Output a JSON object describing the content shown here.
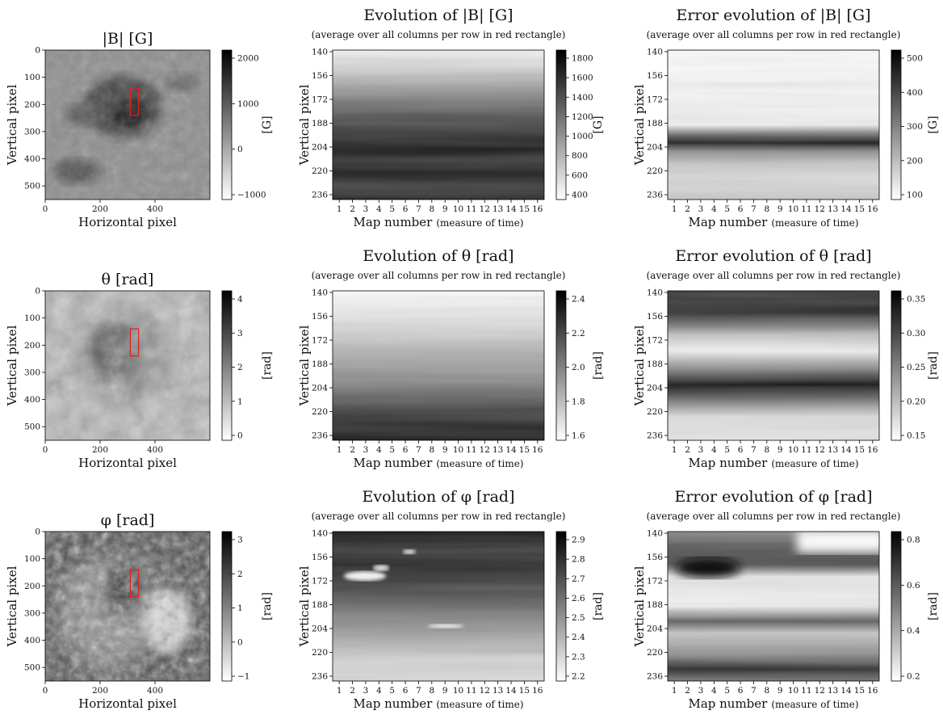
{
  "figure": {
    "rows": [
      {
        "map": {
          "title": "|B| [G]",
          "xlabel": "Horizontal pixel",
          "ylabel": "Vertical pixel",
          "xticks": [
            "0",
            "200",
            "400"
          ],
          "yticks": [
            "0",
            "100",
            "200",
            "300",
            "400",
            "500"
          ],
          "cbar_ticks": [
            "2000",
            "1000",
            "0",
            "−1000"
          ],
          "cbar_label": "[G]"
        },
        "evolution": {
          "title": "Evolution of |B| [G]",
          "subtitle": "(average over all columns per row in red rectangle)",
          "xlabel": "Map number",
          "xlabel_suffix": "(measure of time)",
          "yticks": [
            "140",
            "156",
            "172",
            "188",
            "204",
            "220",
            "236"
          ],
          "xticks": [
            "1",
            "2",
            "3",
            "4",
            "5",
            "6",
            "7",
            "8",
            "9",
            "10",
            "11",
            "12",
            "13",
            "14",
            "15",
            "16"
          ],
          "ylabel": "Vertical pixel",
          "cbar_ticks": [
            "1800",
            "1600",
            "1400",
            "1200",
            "1000",
            "800",
            "600",
            "400"
          ],
          "cbar_label": "[G]"
        },
        "error": {
          "title": "Error evolution of |B| [G]",
          "subtitle": "(average over all columns per row in red rectangle)",
          "xlabel": "Map number",
          "xlabel_suffix": "(measure of time)",
          "yticks": [
            "140",
            "156",
            "172",
            "188",
            "204",
            "220",
            "236"
          ],
          "xticks": [
            "1",
            "2",
            "3",
            "4",
            "5",
            "6",
            "7",
            "8",
            "9",
            "10",
            "11",
            "12",
            "13",
            "14",
            "15",
            "16"
          ],
          "ylabel": "Vertical pixel",
          "cbar_ticks": [
            "500",
            "400",
            "300",
            "200",
            "100"
          ],
          "cbar_label": "[G]"
        }
      },
      {
        "map": {
          "title": "θ [rad]",
          "xlabel": "Horizontal pixel",
          "ylabel": "Vertical pixel",
          "xticks": [
            "0",
            "200",
            "400"
          ],
          "yticks": [
            "0",
            "100",
            "200",
            "300",
            "400",
            "500"
          ],
          "cbar_ticks": [
            "4",
            "3",
            "2",
            "1",
            "0"
          ],
          "cbar_label": "[rad]"
        },
        "evolution": {
          "title": "Evolution of θ [rad]",
          "subtitle": "(average over all columns per row in red rectangle)",
          "xlabel": "Map number",
          "xlabel_suffix": "(measure of time)",
          "yticks": [
            "140",
            "156",
            "172",
            "188",
            "204",
            "220",
            "236"
          ],
          "xticks": [
            "1",
            "2",
            "3",
            "4",
            "5",
            "6",
            "7",
            "8",
            "9",
            "10",
            "11",
            "12",
            "13",
            "14",
            "15",
            "16"
          ],
          "ylabel": "Vertical pixel",
          "cbar_ticks": [
            "2.4",
            "2.2",
            "2.0",
            "1.8",
            "1.6"
          ],
          "cbar_label": "[rad]"
        },
        "error": {
          "title": "Error evolution of θ [rad]",
          "subtitle": "(average over all columns per row in red rectangle)",
          "xlabel": "Map number",
          "xlabel_suffix": "(measure of time)",
          "yticks": [
            "140",
            "156",
            "172",
            "188",
            "204",
            "220",
            "236"
          ],
          "xticks": [
            "1",
            "2",
            "3",
            "4",
            "5",
            "6",
            "7",
            "8",
            "9",
            "10",
            "11",
            "12",
            "13",
            "14",
            "15",
            "16"
          ],
          "ylabel": "Vertical pixel",
          "cbar_ticks": [
            "0.35",
            "0.30",
            "0.25",
            "0.20",
            "0.15"
          ],
          "cbar_label": "[rad]"
        }
      },
      {
        "map": {
          "title": "φ [rad]",
          "xlabel": "Horizontal pixel",
          "ylabel": "Vertical pixel",
          "xticks": [
            "0",
            "200",
            "400"
          ],
          "yticks": [
            "0",
            "100",
            "200",
            "300",
            "400",
            "500"
          ],
          "cbar_ticks": [
            "3",
            "2",
            "1",
            "0",
            "−1"
          ],
          "cbar_label": "[rad]"
        },
        "evolution": {
          "title": "Evolution of φ [rad]",
          "subtitle": "(average over all columns per row in red rectangle)",
          "xlabel": "Map number",
          "xlabel_suffix": "(measure of time)",
          "yticks": [
            "140",
            "156",
            "172",
            "188",
            "204",
            "220",
            "236"
          ],
          "xticks": [
            "1",
            "2",
            "3",
            "4",
            "5",
            "6",
            "7",
            "8",
            "9",
            "10",
            "11",
            "12",
            "13",
            "14",
            "15",
            "16"
          ],
          "ylabel": "Vertical pixel",
          "cbar_ticks": [
            "2.9",
            "2.8",
            "2.7",
            "2.6",
            "2.5",
            "2.4",
            "2.3",
            "2.2"
          ],
          "cbar_label": "[rad]"
        },
        "error": {
          "title": "Error evolution of φ [rad]",
          "subtitle": "(average over all columns per row in red rectangle)",
          "xlabel": "Map number",
          "xlabel_suffix": "(measure of time)",
          "yticks": [
            "140",
            "156",
            "172",
            "188",
            "204",
            "220",
            "236"
          ],
          "xticks": [
            "1",
            "2",
            "3",
            "4",
            "5",
            "6",
            "7",
            "8",
            "9",
            "10",
            "11",
            "12",
            "13",
            "14",
            "15",
            "16"
          ],
          "ylabel": "Vertical pixel",
          "cbar_ticks": [
            "0.8",
            "0.6",
            "0.4",
            "0.2"
          ],
          "cbar_label": "[rad]"
        }
      }
    ]
  },
  "chart_data": [
    {
      "type": "heatmap",
      "title": "|B| [G]",
      "xlabel": "Horizontal pixel",
      "ylabel": "Vertical pixel",
      "xlim": [
        0,
        600
      ],
      "ylim": [
        550,
        0
      ],
      "colorbar": {
        "label": "[G]",
        "range": [
          -1400,
          2900
        ],
        "colormap": "gray_r"
      },
      "annotation": {
        "shape": "rectangle",
        "color": "#dd2222",
        "x": [
          310,
          340
        ],
        "y": [
          140,
          240
        ]
      }
    },
    {
      "type": "heatmap",
      "title": "Evolution of |B| [G]",
      "xlabel": "Map number (measure of time)",
      "ylabel": "Vertical pixel",
      "x": [
        1,
        2,
        3,
        4,
        5,
        6,
        7,
        8,
        9,
        10,
        11,
        12,
        13,
        14,
        15,
        16
      ],
      "ylim": [
        240,
        140
      ],
      "colorbar": {
        "label": "[G]",
        "range": [
          350,
          1880
        ],
        "colormap": "gray_r"
      },
      "row_profile": {
        "y": [
          140,
          156,
          172,
          188,
          204,
          220,
          236
        ],
        "value": [
          380,
          700,
          1250,
          1600,
          1820,
          1700,
          1650
        ]
      }
    },
    {
      "type": "heatmap",
      "title": "Error evolution of |B| [G]",
      "xlabel": "Map number (measure of time)",
      "ylabel": "Vertical pixel",
      "x": [
        1,
        2,
        3,
        4,
        5,
        6,
        7,
        8,
        9,
        10,
        11,
        12,
        13,
        14,
        15,
        16
      ],
      "ylim": [
        240,
        140
      ],
      "colorbar": {
        "label": "[G]",
        "range": [
          50,
          550
        ],
        "colormap": "gray_r"
      },
      "row_profile": {
        "y": [
          140,
          156,
          172,
          188,
          200,
          204,
          220,
          236
        ],
        "value": [
          60,
          70,
          80,
          110,
          520,
          430,
          230,
          180
        ]
      }
    },
    {
      "type": "heatmap",
      "title": "θ [rad]",
      "xlabel": "Horizontal pixel",
      "ylabel": "Vertical pixel",
      "xlim": [
        0,
        600
      ],
      "ylim": [
        550,
        0
      ],
      "colorbar": {
        "label": "[rad]",
        "range": [
          -0.1,
          4.5
        ],
        "colormap": "gray_r"
      },
      "annotation": {
        "shape": "rectangle",
        "color": "#dd2222",
        "x": [
          310,
          340
        ],
        "y": [
          140,
          240
        ]
      }
    },
    {
      "type": "heatmap",
      "title": "Evolution of θ [rad]",
      "xlabel": "Map number (measure of time)",
      "ylabel": "Vertical pixel",
      "x": [
        1,
        2,
        3,
        4,
        5,
        6,
        7,
        8,
        9,
        10,
        11,
        12,
        13,
        14,
        15,
        16
      ],
      "ylim": [
        240,
        140
      ],
      "colorbar": {
        "label": "[rad]",
        "range": [
          1.58,
          2.45
        ],
        "colormap": "gray_r"
      },
      "row_profile": {
        "y": [
          140,
          156,
          172,
          188,
          204,
          220,
          236
        ],
        "value": [
          1.6,
          1.68,
          1.78,
          1.9,
          2.05,
          2.22,
          2.38
        ]
      }
    },
    {
      "type": "heatmap",
      "title": "Error evolution of θ [rad]",
      "xlabel": "Map number (measure of time)",
      "ylabel": "Vertical pixel",
      "x": [
        1,
        2,
        3,
        4,
        5,
        6,
        7,
        8,
        9,
        10,
        11,
        12,
        13,
        14,
        15,
        16
      ],
      "ylim": [
        240,
        140
      ],
      "colorbar": {
        "label": "[rad]",
        "range": [
          0.12,
          0.37
        ],
        "colormap": "gray_r"
      },
      "row_profile": {
        "y": [
          140,
          156,
          172,
          188,
          204,
          220,
          236
        ],
        "value": [
          0.3,
          0.26,
          0.19,
          0.24,
          0.33,
          0.2,
          0.15
        ]
      }
    },
    {
      "type": "heatmap",
      "title": "φ [rad]",
      "xlabel": "Horizontal pixel",
      "ylabel": "Vertical pixel",
      "xlim": [
        0,
        600
      ],
      "ylim": [
        550,
        0
      ],
      "colorbar": {
        "label": "[rad]",
        "range": [
          -1.1,
          3.4
        ],
        "colormap": "gray_r"
      },
      "annotation": {
        "shape": "rectangle",
        "color": "#dd2222",
        "x": [
          310,
          340
        ],
        "y": [
          140,
          240
        ]
      }
    },
    {
      "type": "heatmap",
      "title": "Evolution of φ [rad]",
      "xlabel": "Map number (measure of time)",
      "ylabel": "Vertical pixel",
      "x": [
        1,
        2,
        3,
        4,
        5,
        6,
        7,
        8,
        9,
        10,
        11,
        12,
        13,
        14,
        15,
        16
      ],
      "ylim": [
        240,
        140
      ],
      "colorbar": {
        "label": "[rad]",
        "range": [
          2.17,
          2.93
        ],
        "colormap": "gray_r"
      },
      "row_profile": {
        "y": [
          140,
          156,
          172,
          188,
          204,
          220,
          236
        ],
        "value": [
          2.85,
          2.75,
          2.82,
          2.7,
          2.55,
          2.4,
          2.3
        ]
      }
    },
    {
      "type": "heatmap",
      "title": "Error evolution of φ [rad]",
      "xlabel": "Map number (measure of time)",
      "ylabel": "Vertical pixel",
      "x": [
        1,
        2,
        3,
        4,
        5,
        6,
        7,
        8,
        9,
        10,
        11,
        12,
        13,
        14,
        15,
        16
      ],
      "ylim": [
        240,
        140
      ],
      "colorbar": {
        "label": "[rad]",
        "range": [
          0.02,
          0.88
        ],
        "colormap": "gray_r"
      },
      "row_profile": {
        "y": [
          140,
          156,
          164,
          188,
          202,
          220,
          236
        ],
        "value": [
          0.35,
          0.55,
          0.8,
          0.15,
          0.6,
          0.3,
          0.6
        ]
      }
    }
  ]
}
